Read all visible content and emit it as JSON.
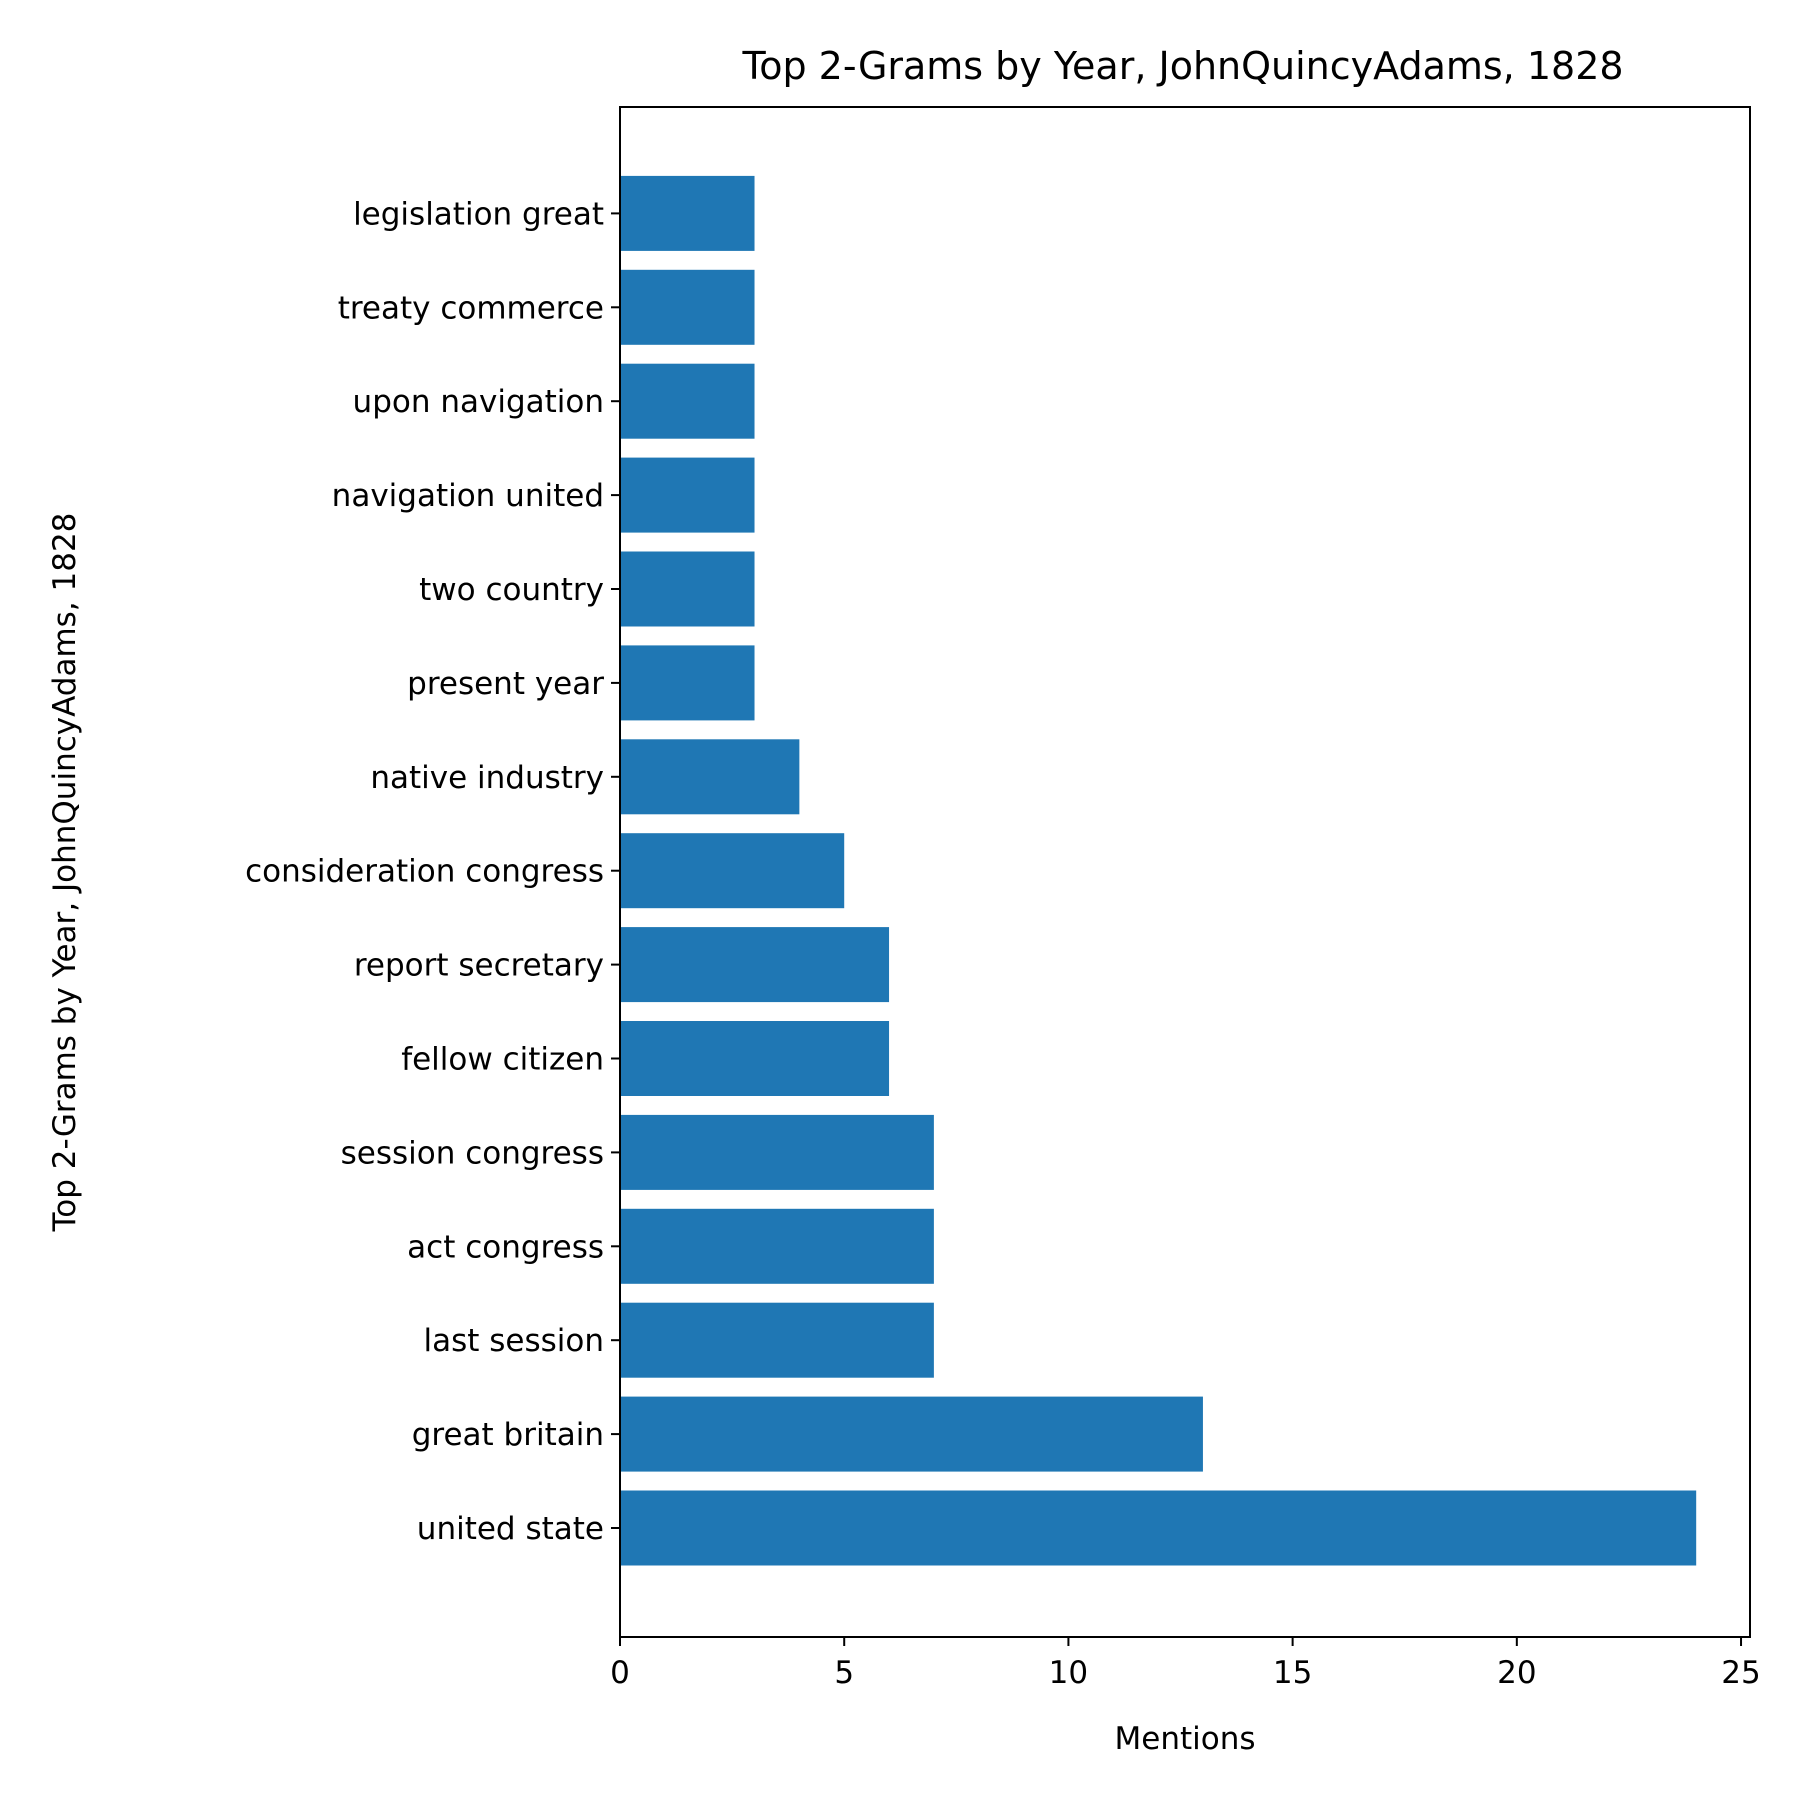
{
  "chart_data": {
    "type": "bar",
    "orientation": "horizontal",
    "title": "Top 2-Grams by Year, JohnQuincyAdams, 1828",
    "xlabel": "Mentions",
    "ylabel": "Top 2-Grams by Year, JohnQuincyAdams, 1828",
    "categories": [
      "united state",
      "great britain",
      "last session",
      "act congress",
      "session congress",
      "fellow citizen",
      "report secretary",
      "consideration congress",
      "native industry",
      "present year",
      "two country",
      "navigation united",
      "upon navigation",
      "treaty commerce",
      "legislation great"
    ],
    "values": [
      24,
      13,
      7,
      7,
      7,
      6,
      6,
      5,
      4,
      3,
      3,
      3,
      3,
      3,
      3
    ],
    "xlim": [
      0,
      25.2
    ],
    "xticks": [
      0,
      5,
      10,
      15,
      20,
      25
    ],
    "grid": false,
    "bar_color": "#1f77b4"
  }
}
